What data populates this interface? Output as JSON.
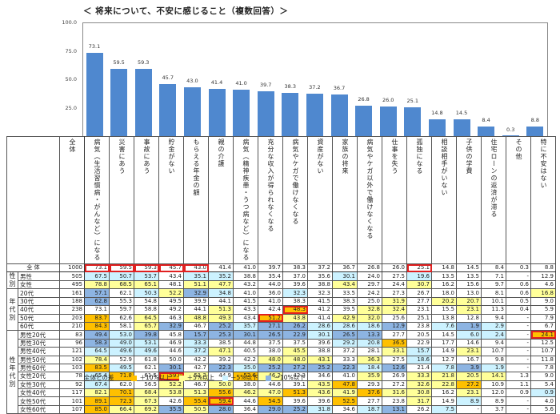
{
  "title": "＜ 将来について、不安に感じること（複数回答）＞",
  "chart_data": {
    "type": "bar",
    "title": "将来について、不安に感じること（複数回答）",
    "ylim": [
      0,
      100
    ],
    "yticks": [
      "100.0",
      "75.0",
      "50.0",
      "25.0"
    ],
    "categories": [
      "病気（生活習慣病・がんなど）になる",
      "災害にあう",
      "事故にあう",
      "貯金がない",
      "もらえる年金の額",
      "親の介護",
      "病気（精神疾患・うつ病など）になる",
      "充分な収入が得られなくなる",
      "病気やケガで働けなくなる",
      "資産がない",
      "家族の将来",
      "病気やケガ以外で働けなくなる",
      "仕事を失う",
      "孤独になる",
      "相談相手がいない",
      "子供の学費",
      "住宅ローンの返済が滞る",
      "その他",
      "特に不安はない"
    ],
    "values": [
      73.1,
      59.5,
      59.3,
      45.7,
      43.0,
      41.4,
      41.0,
      39.7,
      38.3,
      37.2,
      36.7,
      26.8,
      26.0,
      25.1,
      14.8,
      14.5,
      8.4,
      0.3,
      8.8
    ],
    "bar_color": "#4f88cf"
  },
  "table": {
    "total_header": "全体",
    "rows": [
      {
        "group": "",
        "label": "全 体",
        "n": "1000",
        "vals": [
          "73.1",
          "59.5",
          "59.3",
          "45.7",
          "43.0",
          "41.4",
          "41.0",
          "39.7",
          "38.3",
          "37.2",
          "36.7",
          "26.8",
          "26.0",
          "25.1",
          "14.8",
          "14.5",
          "8.4",
          "0.3",
          "8.8"
        ],
        "cls": [
          "hl",
          "hl",
          "hl",
          "hl",
          "hl",
          "",
          "",
          "",
          "",
          "",
          "",
          "",
          "",
          "hl",
          "",
          "",
          "",
          "",
          ""
        ]
      },
      {
        "group": "性別",
        "label": "男性",
        "n": "505",
        "vals": [
          "67.5",
          "50.7",
          "53.7",
          "43.4",
          "35.1",
          "35.2",
          "38.8",
          "35.4",
          "37.0",
          "35.6",
          "30.1",
          "24.0",
          "27.5",
          "19.6",
          "13.5",
          "13.5",
          "7.1",
          "-",
          "12.9"
        ],
        "cls": [
          "m5",
          "m5",
          "m5",
          "",
          "m5",
          "m5",
          "",
          "",
          "",
          "",
          "m5",
          "",
          "",
          "m5",
          "",
          "",
          "",
          "",
          ""
        ]
      },
      {
        "group": "",
        "label": "女性",
        "n": "495",
        "vals": [
          "78.8",
          "68.5",
          "65.1",
          "48.1",
          "51.1",
          "47.7",
          "43.2",
          "44.0",
          "39.6",
          "38.8",
          "43.4",
          "29.7",
          "24.4",
          "30.7",
          "16.2",
          "15.6",
          "9.7",
          "0.6",
          "4.6"
        ],
        "cls": [
          "p5",
          "p5",
          "p5",
          "",
          "p5",
          "p5",
          "",
          "",
          "",
          "",
          "p5",
          "",
          "",
          "p5",
          "",
          "",
          "",
          "",
          ""
        ]
      },
      {
        "group": "年代別",
        "label": "20代",
        "n": "161",
        "vals": [
          "57.1",
          "62.1",
          "50.3",
          "52.2",
          "32.9",
          "34.8",
          "41.0",
          "36.0",
          "32.3",
          "32.3",
          "33.5",
          "24.2",
          "27.3",
          "26.7",
          "18.0",
          "13.0",
          "8.1",
          "0.6",
          "16.8"
        ],
        "cls": [
          "m10",
          "",
          "m5",
          "p5",
          "m10",
          "m5",
          "",
          "",
          "m5",
          "",
          "",
          "",
          "",
          "",
          "",
          "",
          "",
          "",
          "p5"
        ]
      },
      {
        "group": "",
        "label": "30代",
        "n": "188",
        "vals": [
          "62.8",
          "55.3",
          "54.8",
          "49.5",
          "39.9",
          "44.1",
          "41.5",
          "41.0",
          "38.3",
          "41.5",
          "38.3",
          "25.0",
          "31.9",
          "27.7",
          "20.2",
          "20.7",
          "10.1",
          "0.5",
          "9.0"
        ],
        "cls": [
          "m10",
          "",
          "",
          "",
          "",
          "",
          "",
          "",
          "",
          "",
          "",
          "",
          "p5",
          "",
          "p5",
          "p5",
          "",
          "",
          ""
        ]
      },
      {
        "group": "",
        "label": "40代",
        "n": "238",
        "vals": [
          "73.1",
          "59.7",
          "58.8",
          "49.2",
          "44.1",
          "51.3",
          "43.3",
          "42.4",
          "48.3",
          "41.2",
          "39.5",
          "32.8",
          "32.4",
          "23.1",
          "15.5",
          "23.1",
          "11.3",
          "0.4",
          "5.9"
        ],
        "cls": [
          "",
          "",
          "",
          "",
          "",
          "p5",
          "",
          "",
          "p10 hl",
          "",
          "",
          "p5",
          "p5",
          "",
          "",
          "p5",
          "",
          "",
          ""
        ]
      },
      {
        "group": "",
        "label": "50代",
        "n": "203",
        "vals": [
          "83.7",
          "62.6",
          "64.5",
          "46.3",
          "48.8",
          "49.3",
          "43.4",
          "51.2",
          "43.8",
          "41.4",
          "42.9",
          "32.0",
          "25.6",
          "25.1",
          "13.8",
          "12.8",
          "9.4",
          "-",
          "7.9"
        ],
        "cls": [
          "p10",
          "",
          "p5",
          "",
          "p5",
          "p5",
          "",
          "p10 hl",
          "p5",
          "",
          "p5",
          "p5",
          "",
          "",
          "",
          "",
          "",
          "",
          ""
        ]
      },
      {
        "group": "",
        "label": "60代",
        "n": "210",
        "vals": [
          "84.3",
          "58.1",
          "65.7",
          "32.9",
          "46.7",
          "25.2",
          "35.7",
          "27.1",
          "26.2",
          "28.6",
          "28.6",
          "18.6",
          "12.9",
          "23.8",
          "7.6",
          "1.9",
          "2.9",
          "-",
          "6.7"
        ],
        "cls": [
          "p10",
          "",
          "p5",
          "m10",
          "",
          "m10",
          "m5",
          "m10",
          "m10",
          "m5",
          "m5",
          "m5",
          "m10",
          "",
          "m5",
          "m10",
          "m5",
          "",
          ""
        ]
      },
      {
        "group": "性年代別",
        "label": "男性20代",
        "n": "83",
        "vals": [
          "49.4",
          "53.0",
          "39.8",
          "45.8",
          "15.7",
          "25.3",
          "30.1",
          "26.5",
          "22.9",
          "30.1",
          "26.5",
          "13.3",
          "27.7",
          "20.5",
          "14.5",
          "6.0",
          "2.4",
          "-",
          "24.1"
        ],
        "cls": [
          "m10",
          "m5",
          "m10",
          "",
          "m10",
          "m10",
          "m10",
          "m10",
          "m10",
          "m5",
          "m10",
          "m10",
          "",
          "",
          "",
          "m5",
          "m5",
          "",
          "p10 hl"
        ]
      },
      {
        "group": "",
        "label": "男性30代",
        "n": "96",
        "vals": [
          "58.3",
          "49.0",
          "53.1",
          "46.9",
          "33.3",
          "38.5",
          "44.8",
          "37.5",
          "37.5",
          "39.6",
          "29.2",
          "20.8",
          "36.5",
          "22.9",
          "17.7",
          "14.6",
          "9.4",
          "-",
          "12.5"
        ],
        "cls": [
          "m10",
          "m5",
          "m5",
          "",
          "m5",
          "",
          "",
          "",
          "",
          "",
          "m5",
          "m5",
          "p10",
          "",
          "",
          "",
          "",
          "",
          ""
        ]
      },
      {
        "group": "",
        "label": "男性40代",
        "n": "121",
        "vals": [
          "64.5",
          "49.6",
          "49.6",
          "44.6",
          "37.2",
          "47.1",
          "40.5",
          "38.0",
          "45.5",
          "38.8",
          "37.2",
          "28.1",
          "33.1",
          "15.7",
          "14.9",
          "23.1",
          "10.7",
          "-",
          "10.7"
        ],
        "cls": [
          "m5",
          "m5",
          "m5",
          "",
          "m5",
          "p5",
          "",
          "",
          "p5",
          "",
          "",
          "",
          "p5",
          "m5",
          "",
          "p5",
          "",
          "",
          ""
        ]
      },
      {
        "group": "",
        "label": "男性50代",
        "n": "102",
        "vals": [
          "78.4",
          "52.9",
          "61.8",
          "50.0",
          "42.2",
          "39.2",
          "42.2",
          "48.0",
          "48.0",
          "43.1",
          "33.3",
          "36.3",
          "27.5",
          "18.6",
          "12.7",
          "16.7",
          "9.8",
          "-",
          "11.8"
        ],
        "cls": [
          "p5",
          "",
          "",
          "",
          "",
          "",
          "",
          "p5",
          "p5",
          "p5",
          "",
          "p5",
          "",
          "m5",
          "",
          "",
          "",
          "",
          ""
        ]
      },
      {
        "group": "",
        "label": "男性60代",
        "n": "103",
        "vals": [
          "83.5",
          "49.5",
          "62.1",
          "30.1",
          "42.7",
          "22.3",
          "35.0",
          "25.2",
          "27.2",
          "25.2",
          "22.3",
          "18.4",
          "12.6",
          "21.4",
          "7.8",
          "3.9",
          "1.9",
          "-",
          "7.8"
        ],
        "cls": [
          "p10",
          "m5",
          "",
          "m10",
          "",
          "m10",
          "m5",
          "m10",
          "m10",
          "m10",
          "m10",
          "m5",
          "m10",
          "",
          "m5",
          "m10",
          "m5",
          "",
          ""
        ]
      },
      {
        "group": "",
        "label": "女性20代",
        "n": "78",
        "vals": [
          "65.4",
          "71.8",
          "61.5",
          "59.0",
          "51.3",
          "44.9",
          "52.6",
          "46.2",
          "42.3",
          "34.6",
          "41.0",
          "35.9",
          "26.9",
          "33.3",
          "21.8",
          "20.5",
          "14.1",
          "1.3",
          "9.0"
        ],
        "cls": [
          "m5",
          "p10",
          "",
          "p10 hl",
          "p5",
          "",
          "p10",
          "p5",
          "",
          "",
          "",
          "p5",
          "",
          "p5",
          "p5",
          "p5",
          "p5",
          "",
          ""
        ]
      },
      {
        "group": "",
        "label": "女性30代",
        "n": "92",
        "vals": [
          "67.4",
          "62.0",
          "56.5",
          "52.2",
          "46.7",
          "50.0",
          "38.0",
          "44.6",
          "39.1",
          "43.5",
          "47.8",
          "29.3",
          "27.2",
          "32.6",
          "22.8",
          "27.2",
          "10.9",
          "1.1",
          "5.4"
        ],
        "cls": [
          "m5",
          "",
          "",
          "p5",
          "",
          "p5",
          "",
          "",
          "",
          "p5",
          "p10",
          "",
          "",
          "p5",
          "p5",
          "p10",
          "",
          "",
          ""
        ]
      },
      {
        "group": "",
        "label": "女性40代",
        "n": "117",
        "vals": [
          "82.1",
          "70.1",
          "68.4",
          "53.8",
          "51.3",
          "55.6",
          "46.2",
          "47.0",
          "51.3",
          "43.6",
          "41.9",
          "37.6",
          "31.6",
          "30.8",
          "16.2",
          "23.1",
          "12.0",
          "0.9",
          "0.9"
        ],
        "cls": [
          "p5",
          "p10",
          "p5",
          "p5",
          "p5",
          "p10",
          "p5",
          "p5",
          "p10",
          "p5",
          "p5",
          "p10",
          "p5",
          "p5",
          "",
          "p5",
          "",
          "",
          "m5"
        ]
      },
      {
        "group": "",
        "label": "女性50代",
        "n": "101",
        "vals": [
          "89.1",
          "72.3",
          "67.3",
          "42.6",
          "55.4",
          "59.4",
          "44.6",
          "54.5",
          "39.6",
          "39.6",
          "52.5",
          "27.7",
          "23.8",
          "31.7",
          "14.9",
          "8.9",
          "8.9",
          "-",
          "4.0"
        ],
        "cls": [
          "p10",
          "p10",
          "p5",
          "",
          "p10",
          "p10 hl",
          "",
          "p10",
          "",
          "",
          "p10",
          "",
          "",
          "p5",
          "",
          "m5",
          "",
          "",
          ""
        ]
      },
      {
        "group": "",
        "label": "女性60代",
        "n": "107",
        "vals": [
          "85.0",
          "66.4",
          "69.2",
          "35.5",
          "50.5",
          "28.0",
          "36.4",
          "29.0",
          "25.2",
          "31.8",
          "34.6",
          "18.7",
          "13.1",
          "26.2",
          "7.5",
          "-",
          "3.7",
          "-",
          "5.6"
        ],
        "cls": [
          "p10",
          "p5",
          "p5",
          "m10",
          "p5",
          "m10",
          "",
          "m10",
          "m10",
          "m5",
          "",
          "m5",
          "m10",
          "",
          "m5",
          "",
          "",
          "",
          ""
        ]
      }
    ],
    "groups": [
      {
        "label": "性別",
        "start": 1,
        "span": 2
      },
      {
        "label": "年代別",
        "start": 3,
        "span": 5
      },
      {
        "label": "性年代別",
        "start": 8,
        "span": 10
      }
    ]
  },
  "legend": {
    "title": "全体との差",
    "items": [
      {
        "label": "＋10%以上",
        "color": "#ffc000"
      },
      {
        "label": "＋5%以上",
        "color": "#ffff99"
      },
      {
        "label": "－5%以下",
        "color": "#ccf2ff"
      },
      {
        "label": "－10%以下",
        "color": "#8db4e2"
      }
    ]
  }
}
